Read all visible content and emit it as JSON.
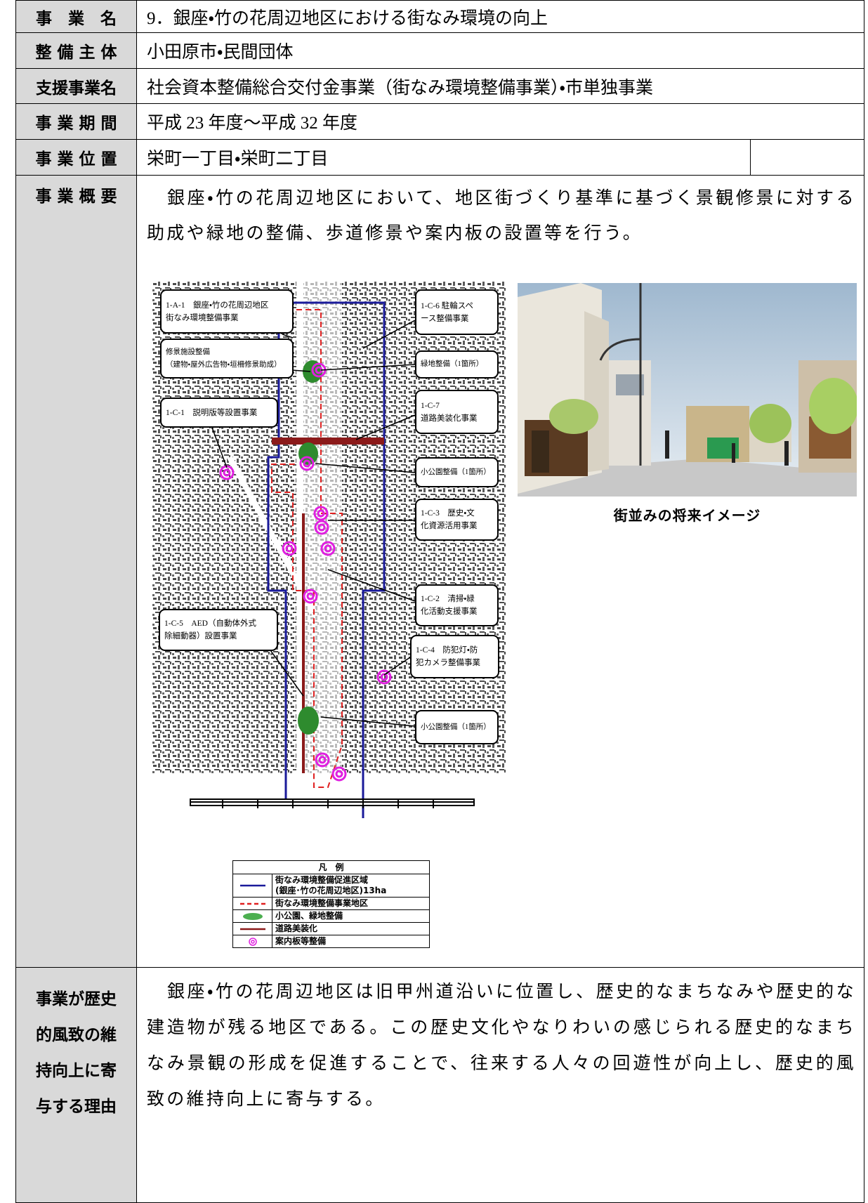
{
  "table": {
    "rows": [
      {
        "label": "事　業　名",
        "value": "9．銀座・竹の花周辺地区における街なみ環境の向上"
      },
      {
        "label": "整 備 主 体",
        "value": "小田原市・民間団体"
      },
      {
        "label": "支援事業名",
        "value": "社会資本整備総合交付金事業（街なみ環境整備事業）・市単独事業"
      },
      {
        "label": "事 業 期 間",
        "value": "平成 23 年度～平成 32 年度"
      },
      {
        "label": "事 業 位 置",
        "value": "栄町一丁目・栄町二丁目"
      },
      {
        "label": "事 業 概 要",
        "value": "銀座・竹の花周辺地区において、地区街づくり基準に基づく景観修景に対する助成や緑地の整備、歩道修景や案内板の設置等を行う。"
      }
    ]
  },
  "map": {
    "callouts": [
      {
        "lines": [
          "1-A-1　銀座・竹の花周辺地区",
          "街なみ環境整備事業"
        ]
      },
      {
        "lines": [
          "修景施設整備",
          "（建物・屋外広告物・垣柵修景助成）"
        ]
      },
      {
        "lines": [
          "1-C-1　説明版等設置事業"
        ]
      },
      {
        "lines": [
          "1-C-5　AED（自動体外式",
          "除細動器）設置事業"
        ]
      },
      {
        "lines": [
          "1-C-6 駐輪スペ",
          "ース整備事業"
        ]
      },
      {
        "lines": [
          "緑地整備（1箇所）"
        ]
      },
      {
        "lines": [
          "1-C-7",
          "道路美装化事業"
        ]
      },
      {
        "lines": [
          "小公園整備（1箇所）"
        ]
      },
      {
        "lines": [
          "1-C-3　歴史・文",
          "化資源活用事業"
        ]
      },
      {
        "lines": [
          "1-C-2　清掃・緑",
          "化活動支援事業"
        ]
      },
      {
        "lines": [
          "1-C-4　防犯灯・防",
          "犯カメラ整備事業"
        ]
      },
      {
        "lines": [
          "小公園整備（1箇所）"
        ]
      }
    ]
  },
  "legend": {
    "title": "凡　例",
    "items": [
      {
        "lines": [
          "街なみ環境整備促進区域",
          "(銀座･竹の花周辺地区)13ha"
        ]
      },
      {
        "lines": [
          "街なみ環境整備事業地区"
        ]
      },
      {
        "lines": [
          "小公園、緑地整備"
        ]
      },
      {
        "lines": [
          "道路美装化"
        ]
      },
      {
        "lines": [
          "案内板等整備"
        ]
      }
    ]
  },
  "photo": {
    "caption": "街並みの将来イメージ"
  },
  "reason": {
    "label_lines": [
      "事業が歴史",
      "的風致の維",
      "持向上に寄",
      "与する理由"
    ],
    "text": "銀座・竹の花周辺地区は旧甲州道沿いに位置し、歴史的なまちなみや歴史的な建造物が残る地区である。この歴史文化やなりわいの感じられる歴史的なまちなみ景観の形成を促進することで、往来する人々の回遊性が向上し、歴史的風致の維持向上に寄与する。"
  }
}
